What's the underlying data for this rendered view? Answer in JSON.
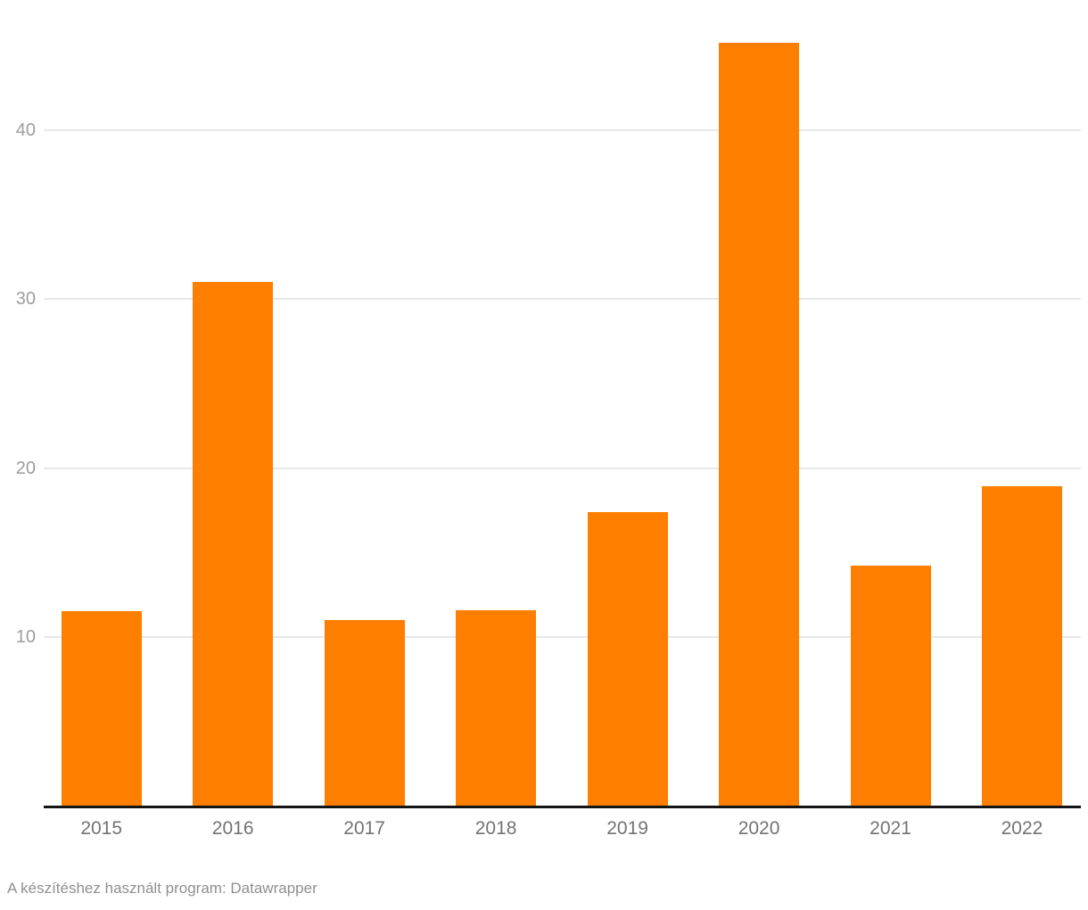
{
  "chart_data": {
    "type": "bar",
    "categories": [
      "2015",
      "2016",
      "2017",
      "2018",
      "2019",
      "2020",
      "2021",
      "2022"
    ],
    "values": [
      11.5,
      31,
      11,
      11.6,
      17.4,
      45.2,
      14.2,
      18.9
    ],
    "title": "",
    "xlabel": "",
    "ylabel": "",
    "ylim": [
      0,
      48
    ],
    "yticks": [
      10,
      20,
      30,
      40
    ],
    "grid": true,
    "legend": "none"
  },
  "footer": {
    "credit": "A készítéshez használt program: Datawrapper"
  },
  "colors": {
    "bar": "#fe7e00",
    "gridline": "#e8e8e8",
    "axis_line": "#141414",
    "ytick_label": "#9d9d9d",
    "xtick_label": "#737373",
    "footer_text": "#8f8f8f",
    "background": "#ffffff"
  }
}
